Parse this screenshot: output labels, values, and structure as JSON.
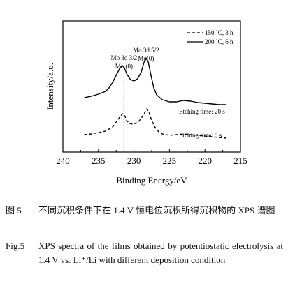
{
  "chart_data": {
    "type": "line",
    "xlabel": "Binding Energy/eV",
    "ylabel": "Intensity/a.u.",
    "xlim": [
      240,
      215
    ],
    "x_reversed": true,
    "xticks": [
      "240",
      "235",
      "230",
      "225",
      "220",
      "215"
    ],
    "yaxis_ticks": false,
    "grid": false,
    "legend_position": "top-right",
    "series": [
      {
        "name": "150 ˚C, 3 h",
        "style": "dashed",
        "label": "Etching time: 5 s",
        "points": [
          [
            237.0,
            0.15
          ],
          [
            236.0,
            0.16
          ],
          [
            235.0,
            0.18
          ],
          [
            234.0,
            0.2
          ],
          [
            233.0,
            0.26
          ],
          [
            232.5,
            0.33
          ],
          [
            232.0,
            0.4
          ],
          [
            231.6,
            0.45
          ],
          [
            231.3,
            0.42
          ],
          [
            231.0,
            0.35
          ],
          [
            230.6,
            0.31
          ],
          [
            230.2,
            0.3
          ],
          [
            229.5,
            0.32
          ],
          [
            229.0,
            0.38
          ],
          [
            228.5,
            0.46
          ],
          [
            228.2,
            0.52
          ],
          [
            227.9,
            0.48
          ],
          [
            227.5,
            0.35
          ],
          [
            227.0,
            0.25
          ],
          [
            226.5,
            0.19
          ],
          [
            226.0,
            0.16
          ],
          [
            225.0,
            0.14
          ],
          [
            224.0,
            0.15
          ],
          [
            223.0,
            0.16
          ],
          [
            222.0,
            0.15
          ],
          [
            221.0,
            0.14
          ],
          [
            220.0,
            0.13
          ],
          [
            219.0,
            0.12
          ],
          [
            218.0,
            0.11
          ],
          [
            217.0,
            0.1
          ]
        ]
      },
      {
        "name": "200 ˚C, 6 h",
        "style": "solid",
        "label": "Etching time: 20 s",
        "points": [
          [
            237.0,
            0.68
          ],
          [
            236.0,
            0.7
          ],
          [
            235.0,
            0.73
          ],
          [
            234.0,
            0.77
          ],
          [
            233.5,
            0.82
          ],
          [
            233.0,
            0.9
          ],
          [
            232.5,
            1.0
          ],
          [
            232.0,
            1.1
          ],
          [
            231.7,
            1.14
          ],
          [
            231.4,
            1.12
          ],
          [
            231.0,
            1.02
          ],
          [
            230.5,
            0.94
          ],
          [
            230.0,
            0.92
          ],
          [
            229.5,
            0.95
          ],
          [
            229.0,
            1.04
          ],
          [
            228.6,
            1.18
          ],
          [
            228.3,
            1.25
          ],
          [
            228.0,
            1.2
          ],
          [
            227.6,
            1.0
          ],
          [
            227.2,
            0.82
          ],
          [
            226.8,
            0.72
          ],
          [
            226.0,
            0.65
          ],
          [
            225.0,
            0.62
          ],
          [
            224.0,
            0.62
          ],
          [
            223.0,
            0.64
          ],
          [
            222.0,
            0.63
          ],
          [
            221.0,
            0.61
          ],
          [
            220.0,
            0.6
          ],
          [
            219.0,
            0.59
          ],
          [
            218.0,
            0.58
          ],
          [
            217.0,
            0.58
          ]
        ]
      }
    ],
    "annotations": [
      {
        "text_lines": [
          "Mo 3d 3/2",
          "Mo (0)"
        ],
        "x": 231.4
      },
      {
        "text_lines": [
          "Mo 3d 5/2",
          "Mo(0)"
        ],
        "x": 228.3
      }
    ],
    "reference_line_x": 231.4
  },
  "caption": {
    "cn_label": "图 5",
    "cn_text": "不同沉积条件下在 1.4 V 恒电位沉积所得沉积物的 XPS 谱图",
    "en_label": "Fig.5",
    "en_text": "XPS spectra of the films obtained by potentiostatic electrolysis at 1.4 V vs. Li⁺/Li with different deposition condition"
  }
}
